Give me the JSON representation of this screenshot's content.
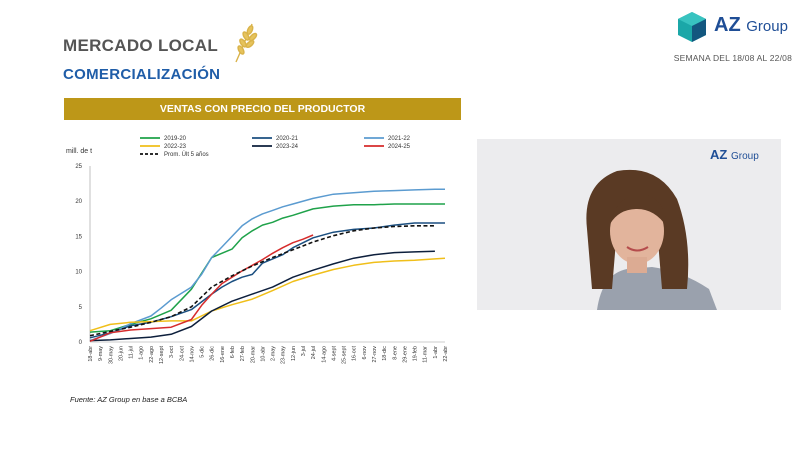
{
  "header": {
    "title": "MERCADO LOCAL",
    "subtitle": "COMERCIALIZACIÓN",
    "week": "SEMANA DEL 18/08 AL 22/08"
  },
  "logo": {
    "brand": "AZ",
    "group": "Group"
  },
  "banner": "VENTAS CON PRECIO DEL PRODUCTOR",
  "source": "Fuente: AZ Group en base a BCBA",
  "video": {
    "logo_brand": "AZ",
    "logo_group": "Group"
  },
  "chart_data": {
    "type": "line",
    "ylabel": "mill. de t",
    "ylim": [
      0,
      25
    ],
    "yticks": [
      0,
      5,
      10,
      15,
      20,
      25
    ],
    "grid": false,
    "legend_position": "top",
    "x_ticks": [
      "18-abr",
      "9-may",
      "30-may",
      "20-jun",
      "11-jul",
      "1-ago",
      "22-ago",
      "12-sept",
      "3-oct",
      "24-oct",
      "14-nov",
      "5-dic",
      "26-dic",
      "16-ene",
      "6-feb",
      "27-feb",
      "20-mar",
      "10-abr",
      "2-may",
      "23-may",
      "12-jun",
      "3-jul",
      "24-jul",
      "14-ago",
      "4-sept",
      "25-sept",
      "16-oct",
      "6-nov",
      "27-nov",
      "18-dic",
      "8-ene",
      "29-ene",
      "19-feb",
      "11-mar",
      "1-abr",
      "22-abr"
    ],
    "series": [
      {
        "name": "2019-20",
        "color": "#1fa24a",
        "dash": false,
        "x": [
          0,
          2,
          4,
          6,
          8,
          10,
          12,
          14,
          15,
          16,
          17,
          18,
          19,
          20,
          22,
          24,
          26,
          28,
          30,
          32,
          34,
          35
        ],
        "values": [
          1.4,
          1.6,
          2.5,
          3.3,
          4.5,
          7.5,
          12,
          13.2,
          14.8,
          15.8,
          16.6,
          17,
          17.6,
          18,
          18.9,
          19.3,
          19.5,
          19.5,
          19.6,
          19.6,
          19.6,
          19.6
        ]
      },
      {
        "name": "2020-21",
        "color": "#1b4f80",
        "dash": false,
        "x": [
          0,
          2,
          4,
          6,
          8,
          10,
          12,
          13,
          14,
          15,
          16,
          17,
          18,
          19,
          20,
          22,
          24,
          26,
          28,
          30,
          32,
          34,
          35
        ],
        "values": [
          0.6,
          1.3,
          2.3,
          2.8,
          3.6,
          4.6,
          6.8,
          7.8,
          8.6,
          9.2,
          9.6,
          11.2,
          11.8,
          12.4,
          13.4,
          14.8,
          15.6,
          16,
          16.2,
          16.6,
          16.9,
          16.9,
          16.9
        ]
      },
      {
        "name": "2021-22",
        "color": "#5b9bd0",
        "dash": false,
        "x": [
          0,
          2,
          4,
          6,
          7,
          8,
          10,
          11,
          12,
          13,
          14,
          15,
          16,
          17,
          18,
          19,
          20,
          22,
          24,
          26,
          28,
          30,
          32,
          34,
          35
        ],
        "values": [
          0.2,
          1.2,
          2.6,
          3.7,
          4.8,
          6,
          7.8,
          9.6,
          12,
          13.5,
          15,
          16.5,
          17.5,
          18.2,
          18.7,
          19.2,
          19.6,
          20.4,
          21,
          21.2,
          21.4,
          21.5,
          21.6,
          21.7,
          21.7
        ]
      },
      {
        "name": "2022-23",
        "color": "#f0bf1a",
        "dash": false,
        "x": [
          0,
          2,
          4,
          6,
          8,
          10,
          12,
          14,
          16,
          18,
          20,
          22,
          24,
          26,
          28,
          30,
          32,
          34,
          35
        ],
        "values": [
          1.6,
          2.5,
          2.8,
          2.9,
          3,
          3,
          4.4,
          5.3,
          6.1,
          7.3,
          8.6,
          9.5,
          10.3,
          10.9,
          11.3,
          11.5,
          11.6,
          11.8,
          11.9
        ]
      },
      {
        "name": "2023-24",
        "color": "#0d1f3c",
        "dash": false,
        "x": [
          0,
          2,
          4,
          6,
          8,
          10,
          12,
          14,
          16,
          18,
          20,
          22,
          24,
          26,
          28,
          30,
          32,
          34
        ],
        "values": [
          0.2,
          0.3,
          0.5,
          0.7,
          1.1,
          2.2,
          4.4,
          5.8,
          6.8,
          7.8,
          9.2,
          10.2,
          11.1,
          11.9,
          12.4,
          12.7,
          12.8,
          12.9
        ]
      },
      {
        "name": "2024-25",
        "color": "#d62c2c",
        "dash": false,
        "x": [
          0,
          2,
          4,
          6,
          8,
          10,
          11,
          12,
          13,
          14,
          15,
          16,
          17,
          18,
          19,
          20,
          21,
          22
        ],
        "values": [
          0.1,
          1.3,
          1.7,
          1.9,
          2.1,
          3.2,
          5.2,
          6.8,
          8.3,
          9.2,
          10.1,
          10.9,
          11.7,
          12.6,
          13.4,
          14.1,
          14.6,
          15.2
        ]
      },
      {
        "name": "Prom. Últ 5 años",
        "color": "#111111",
        "dash": true,
        "x": [
          0,
          2,
          4,
          6,
          8,
          10,
          12,
          14,
          16,
          18,
          20,
          22,
          24,
          26,
          28,
          30,
          32,
          34
        ],
        "values": [
          0.9,
          1.5,
          2.1,
          2.8,
          3.6,
          5,
          7.8,
          9.4,
          10.8,
          12,
          13.1,
          14.2,
          15.1,
          15.8,
          16.2,
          16.4,
          16.5,
          16.5
        ]
      }
    ]
  }
}
